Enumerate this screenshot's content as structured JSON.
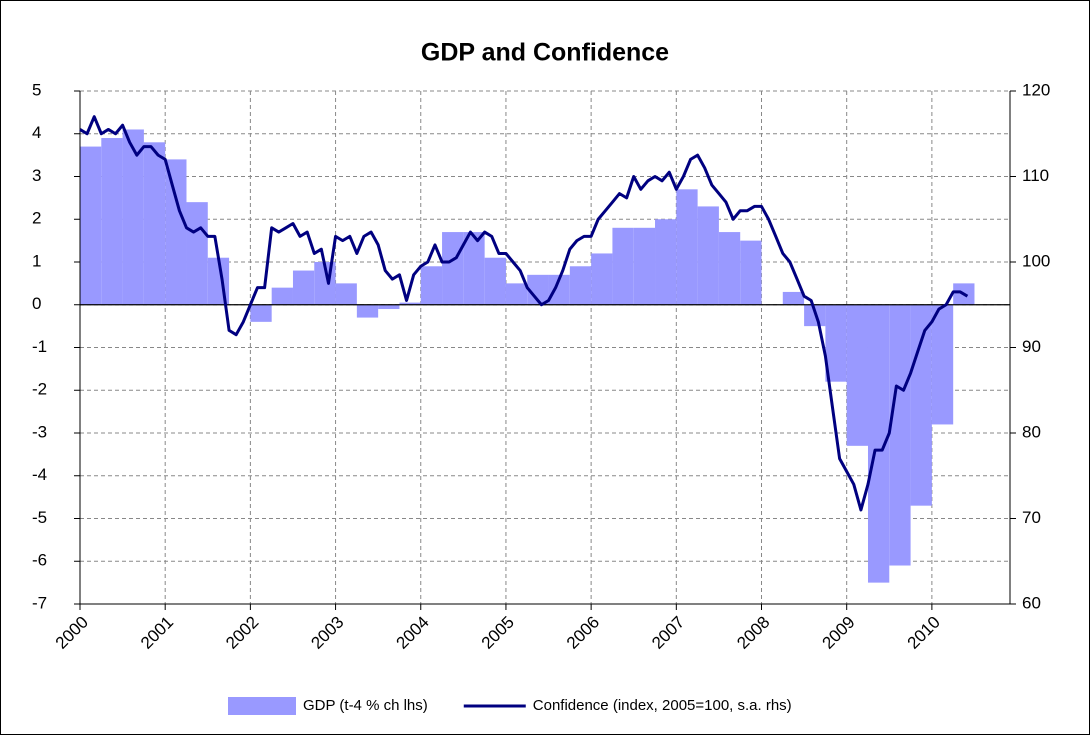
{
  "chart_data": {
    "type": "bar-line",
    "title": "GDP and Confidence",
    "xlim": [
      2000,
      2010.917
    ],
    "xticks": [
      2000,
      2001,
      2002,
      2003,
      2004,
      2005,
      2006,
      2007,
      2008,
      2009,
      2010
    ],
    "ylim": [
      -7,
      5
    ],
    "yticks": [
      -7,
      -6,
      -5,
      -4,
      -3,
      -2,
      -1,
      0,
      1,
      2,
      3,
      4,
      5
    ],
    "y2lim": [
      60,
      120
    ],
    "y2ticks": [
      60,
      70,
      80,
      90,
      100,
      110,
      120
    ],
    "grid": true,
    "legend": "bottom",
    "series": [
      {
        "name": "GDP (t-4 % ch  lhs)",
        "type": "bar",
        "color": "#9999ff",
        "x": [
          2000,
          2000.25,
          2000.5,
          2000.75,
          2001,
          2001.25,
          2001.5,
          2001.75,
          2002,
          2002.25,
          2002.5,
          2002.75,
          2003,
          2003.25,
          2003.5,
          2003.75,
          2004,
          2004.25,
          2004.5,
          2004.75,
          2005,
          2005.25,
          2005.5,
          2005.75,
          2006,
          2006.25,
          2006.5,
          2006.75,
          2007,
          2007.25,
          2007.5,
          2007.75,
          2008,
          2008.25,
          2008.5,
          2008.75,
          2009,
          2009.25,
          2009.5,
          2009.75,
          2010,
          2010.25
        ],
        "values": [
          3.7,
          3.9,
          4.1,
          3.8,
          3.4,
          2.4,
          1.1,
          0.0,
          -0.4,
          0.4,
          0.8,
          1.0,
          0.5,
          -0.3,
          -0.1,
          0.05,
          0.9,
          1.7,
          1.7,
          1.1,
          0.5,
          0.7,
          0.7,
          0.9,
          1.2,
          1.8,
          1.8,
          2.0,
          2.7,
          2.3,
          1.7,
          1.5,
          0.0,
          0.3,
          -0.5,
          -1.8,
          -3.3,
          -6.5,
          -6.1,
          -4.7,
          -2.8,
          0.5
        ]
      },
      {
        "name": "Confidence (index, 2005=100, s.a. rhs)",
        "type": "line",
        "color": "#000080",
        "axis": "y2",
        "x": [
          2000,
          2000.083,
          2000.167,
          2000.25,
          2000.333,
          2000.417,
          2000.5,
          2000.583,
          2000.667,
          2000.75,
          2000.833,
          2000.917,
          2001,
          2001.083,
          2001.167,
          2001.25,
          2001.333,
          2001.417,
          2001.5,
          2001.583,
          2001.667,
          2001.75,
          2001.833,
          2001.917,
          2002,
          2002.083,
          2002.167,
          2002.25,
          2002.333,
          2002.417,
          2002.5,
          2002.583,
          2002.667,
          2002.75,
          2002.833,
          2002.917,
          2003,
          2003.083,
          2003.167,
          2003.25,
          2003.333,
          2003.417,
          2003.5,
          2003.583,
          2003.667,
          2003.75,
          2003.833,
          2003.917,
          2004,
          2004.083,
          2004.167,
          2004.25,
          2004.333,
          2004.417,
          2004.5,
          2004.583,
          2004.667,
          2004.75,
          2004.833,
          2004.917,
          2005,
          2005.083,
          2005.167,
          2005.25,
          2005.333,
          2005.417,
          2005.5,
          2005.583,
          2005.667,
          2005.75,
          2005.833,
          2005.917,
          2006,
          2006.083,
          2006.167,
          2006.25,
          2006.333,
          2006.417,
          2006.5,
          2006.583,
          2006.667,
          2006.75,
          2006.833,
          2006.917,
          2007,
          2007.083,
          2007.167,
          2007.25,
          2007.333,
          2007.417,
          2007.5,
          2007.583,
          2007.667,
          2007.75,
          2007.833,
          2007.917,
          2008,
          2008.083,
          2008.167,
          2008.25,
          2008.333,
          2008.417,
          2008.5,
          2008.583,
          2008.667,
          2008.75,
          2008.833,
          2008.917,
          2009,
          2009.083,
          2009.167,
          2009.25,
          2009.333,
          2009.417,
          2009.5,
          2009.583,
          2009.667,
          2009.75,
          2009.833,
          2009.917,
          2010,
          2010.083,
          2010.167,
          2010.25,
          2010.333,
          2010.417
        ],
        "values": [
          115.5,
          115,
          117,
          115,
          115.5,
          115,
          116,
          114,
          112.5,
          113.5,
          113.5,
          112.5,
          112,
          109,
          106,
          104,
          103.5,
          104,
          103,
          103,
          98,
          92,
          91.5,
          93,
          95,
          97,
          97,
          104,
          103.5,
          104,
          104.5,
          103,
          103.5,
          101,
          101.5,
          97.5,
          103,
          102.5,
          103,
          101,
          103,
          103.5,
          102,
          99,
          98,
          98.5,
          95.5,
          98.5,
          99.5,
          100,
          102,
          100,
          100,
          100.5,
          102,
          103.5,
          102.5,
          103.5,
          103,
          101,
          101,
          100,
          99,
          97,
          96,
          95,
          95.5,
          97,
          99,
          101.5,
          102.5,
          103,
          103,
          105,
          106,
          107,
          108,
          107.5,
          110,
          108.5,
          109.5,
          110,
          109.5,
          110.5,
          108.5,
          110,
          112,
          112.5,
          111,
          109,
          108,
          107,
          105,
          106,
          106,
          106.5,
          106.5,
          105,
          103,
          101,
          100,
          98,
          96,
          95.5,
          93,
          89,
          83,
          77,
          75.5,
          74,
          71,
          74,
          78,
          78,
          80,
          85.5,
          85,
          87,
          89.5,
          92,
          93,
          94.5,
          95,
          96.5,
          96.5,
          96
        ]
      }
    ]
  }
}
